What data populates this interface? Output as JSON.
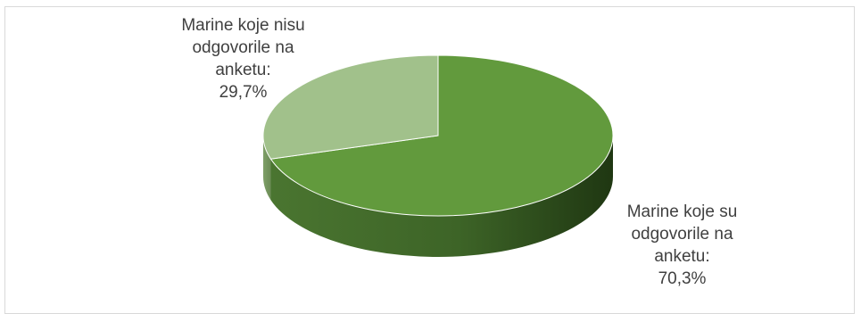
{
  "chart_data": {
    "type": "pie",
    "style": "3d",
    "slices": [
      {
        "label_lines": [
          "Marine koje su",
          "odgovorile na",
          "anketu:",
          "70,3%"
        ],
        "value": 70.3,
        "color": "#629a3d"
      },
      {
        "label_lines": [
          "Marine koje nisu",
          "odgovorile na",
          "anketu:",
          "29,7%"
        ],
        "value": 29.7,
        "color": "#a1c18b"
      }
    ]
  }
}
